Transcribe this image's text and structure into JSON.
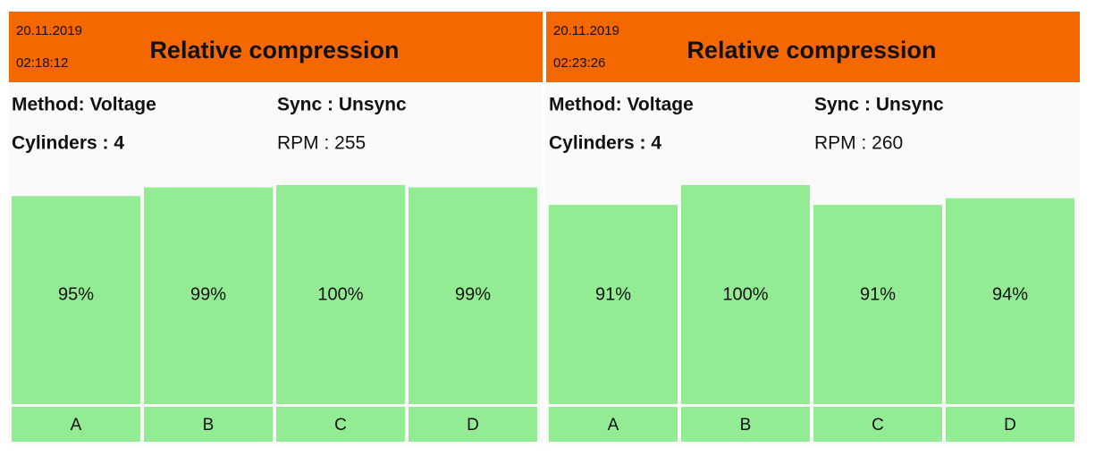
{
  "chart_data": [
    {
      "type": "bar",
      "date": "20.11.2019",
      "time": "02:18:12",
      "title": "Relative compression",
      "method": "Method: Voltage",
      "sync": "Sync : Unsync",
      "cylinders": "Cylinders : 4",
      "rpm": "RPM : 255",
      "categories": [
        "A",
        "B",
        "C",
        "D"
      ],
      "values": [
        95,
        99,
        100,
        99
      ],
      "value_labels": [
        "95%",
        "99%",
        "100%",
        "99%"
      ],
      "color": "#93eb93"
    },
    {
      "type": "bar",
      "date": "20.11.2019",
      "time": "02:23:26",
      "title": "Relative compression",
      "method": "Method: Voltage",
      "sync": "Sync : Unsync",
      "cylinders": "Cylinders : 4",
      "rpm": "RPM : 260",
      "categories": [
        "A",
        "B",
        "C",
        "D"
      ],
      "values": [
        91,
        100,
        91,
        94
      ],
      "value_labels": [
        "91%",
        "100%",
        "91%",
        "94%"
      ],
      "color": "#93eb93"
    }
  ]
}
